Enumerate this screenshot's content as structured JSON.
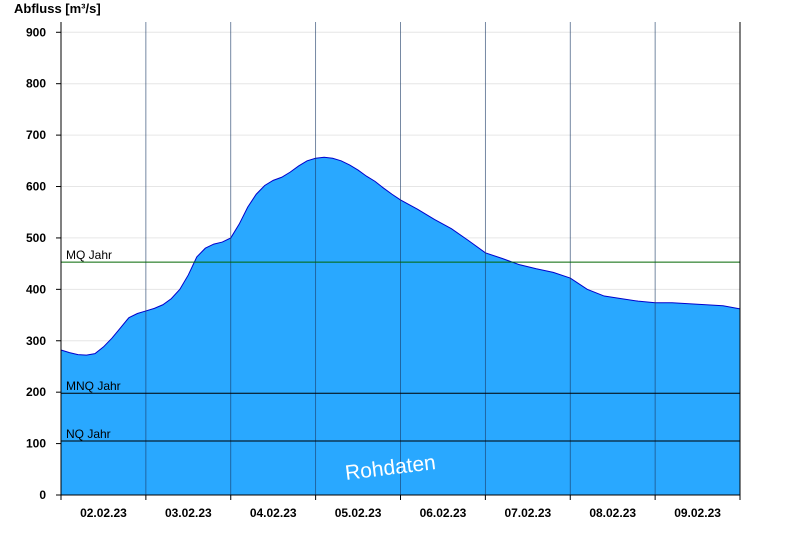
{
  "chart_data": {
    "type": "area",
    "ylabel": "Abfluss [m³/s]",
    "xlabel": "",
    "ylim": [
      0,
      920
    ],
    "yticks": [
      0,
      100,
      200,
      300,
      400,
      500,
      600,
      700,
      800,
      900
    ],
    "x_categories": [
      "02.02.23",
      "03.02.23",
      "04.02.23",
      "05.02.23",
      "06.02.23",
      "07.02.23",
      "08.02.23",
      "09.02.23"
    ],
    "x_unit": "day",
    "x_range_days": [
      0,
      8
    ],
    "grid": "vertical day boundaries",
    "watermark": "Rohdaten",
    "colors": {
      "fill": "#29a8ff",
      "outline": "#0000cc",
      "reference_mq": "#006600",
      "reference_other": "#000000"
    },
    "reference_lines": [
      {
        "label": "MQ Jahr",
        "value": 453,
        "color": "#006600"
      },
      {
        "label": "MNQ Jahr",
        "value": 198,
        "color": "#000000"
      },
      {
        "label": "NQ Jahr",
        "value": 105,
        "color": "#000000"
      }
    ],
    "series": [
      {
        "x": [
          0.0,
          0.1,
          0.2,
          0.3,
          0.4,
          0.5,
          0.6,
          0.7,
          0.8,
          0.9,
          1.0,
          1.1,
          1.2,
          1.3,
          1.4,
          1.5,
          1.6,
          1.7,
          1.8,
          1.9,
          2.0,
          2.1,
          2.2,
          2.3,
          2.4,
          2.5,
          2.6,
          2.7,
          2.8,
          2.9,
          3.0,
          3.1,
          3.2,
          3.3,
          3.4,
          3.5,
          3.6,
          3.7,
          3.8,
          3.9,
          4.0,
          4.2,
          4.4,
          4.6,
          4.8,
          5.0,
          5.2,
          5.4,
          5.6,
          5.8,
          6.0,
          6.2,
          6.4,
          6.6,
          6.8,
          7.0,
          7.2,
          7.4,
          7.6,
          7.8,
          8.0
        ],
        "y": [
          282,
          277,
          273,
          272,
          275,
          288,
          305,
          325,
          345,
          353,
          358,
          363,
          370,
          382,
          400,
          428,
          463,
          480,
          488,
          492,
          500,
          527,
          560,
          585,
          602,
          612,
          618,
          628,
          640,
          650,
          655,
          657,
          655,
          650,
          642,
          632,
          620,
          610,
          597,
          585,
          574,
          556,
          536,
          518,
          495,
          471,
          460,
          448,
          440,
          433,
          422,
          400,
          387,
          382,
          377,
          374,
          374,
          372,
          370,
          368,
          362
        ]
      }
    ]
  }
}
